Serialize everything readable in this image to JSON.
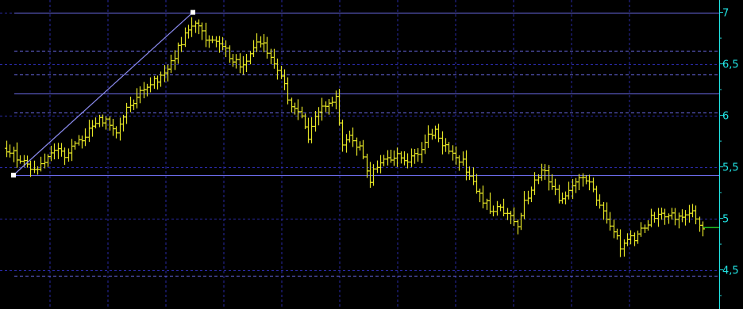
{
  "chart_data": {
    "type": "ohlc",
    "title": "",
    "xlabel": "",
    "ylabel": "",
    "ylim": [
      4.12,
      7.12
    ],
    "y_ticks": [
      {
        "value": 7.0,
        "label": "7"
      },
      {
        "value": 6.5,
        "label": "6,5"
      },
      {
        "value": 6.0,
        "label": "6"
      },
      {
        "value": 5.5,
        "label": "5,5"
      },
      {
        "value": 5.0,
        "label": "5"
      },
      {
        "value": 4.5,
        "label": "4,5"
      }
    ],
    "grid": true,
    "last_value": 4.91,
    "trend_line": {
      "start": {
        "bar": 0,
        "value": 5.42
      },
      "end": {
        "bar": 54,
        "value": 7.0
      }
    },
    "fibonacci_levels": [
      {
        "value": 7.0,
        "style": "solid"
      },
      {
        "value": 6.628,
        "style": "dashed"
      },
      {
        "value": 6.396,
        "style": "dashed"
      },
      {
        "value": 6.21,
        "style": "solid"
      },
      {
        "value": 6.024,
        "style": "dashed"
      },
      {
        "value": 5.42,
        "style": "solid"
      },
      {
        "value": 4.442,
        "style": "dashed"
      }
    ],
    "close_anchors": [
      [
        0,
        5.68
      ],
      [
        3,
        5.6
      ],
      [
        6,
        5.52
      ],
      [
        8,
        5.47
      ],
      [
        11,
        5.55
      ],
      [
        14,
        5.68
      ],
      [
        17,
        5.62
      ],
      [
        20,
        5.72
      ],
      [
        23,
        5.8
      ],
      [
        26,
        5.95
      ],
      [
        29,
        5.95
      ],
      [
        32,
        5.82
      ],
      [
        35,
        6.05
      ],
      [
        38,
        6.2
      ],
      [
        41,
        6.28
      ],
      [
        44,
        6.35
      ],
      [
        47,
        6.45
      ],
      [
        50,
        6.65
      ],
      [
        53,
        6.85
      ],
      [
        55,
        6.88
      ],
      [
        58,
        6.75
      ],
      [
        61,
        6.7
      ],
      [
        64,
        6.62
      ],
      [
        66,
        6.55
      ],
      [
        69,
        6.48
      ],
      [
        72,
        6.68
      ],
      [
        75,
        6.68
      ],
      [
        77,
        6.55
      ],
      [
        80,
        6.4
      ],
      [
        82,
        6.15
      ],
      [
        85,
        6.05
      ],
      [
        88,
        5.78
      ],
      [
        91,
        6.05
      ],
      [
        94,
        6.12
      ],
      [
        96,
        6.15
      ],
      [
        98,
        5.7
      ],
      [
        100,
        5.8
      ],
      [
        103,
        5.68
      ],
      [
        106,
        5.38
      ],
      [
        108,
        5.52
      ],
      [
        111,
        5.6
      ],
      [
        114,
        5.6
      ],
      [
        117,
        5.55
      ],
      [
        120,
        5.62
      ],
      [
        123,
        5.8
      ],
      [
        125,
        5.88
      ],
      [
        127,
        5.72
      ],
      [
        130,
        5.62
      ],
      [
        133,
        5.55
      ],
      [
        135,
        5.4
      ],
      [
        138,
        5.22
      ],
      [
        141,
        5.1
      ],
      [
        144,
        5.08
      ],
      [
        147,
        5.05
      ],
      [
        149,
        4.95
      ],
      [
        151,
        5.15
      ],
      [
        153,
        5.28
      ],
      [
        155,
        5.42
      ],
      [
        157,
        5.45
      ],
      [
        159,
        5.3
      ],
      [
        161,
        5.2
      ],
      [
        164,
        5.25
      ],
      [
        167,
        5.38
      ],
      [
        170,
        5.35
      ],
      [
        172,
        5.15
      ],
      [
        174,
        5.05
      ],
      [
        177,
        4.9
      ],
      [
        179,
        4.72
      ],
      [
        181,
        4.82
      ],
      [
        183,
        4.78
      ],
      [
        186,
        4.92
      ],
      [
        188,
        5.0
      ],
      [
        191,
        5.06
      ],
      [
        194,
        5.02
      ],
      [
        197,
        5.0
      ],
      [
        200,
        5.05
      ],
      [
        202,
        4.95
      ],
      [
        203,
        4.91
      ]
    ]
  }
}
